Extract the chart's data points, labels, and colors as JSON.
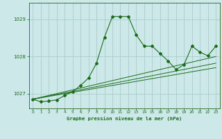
{
  "title": "Graphe pression niveau de la mer (hPa)",
  "background_color": "#cde8e8",
  "grid_color": "#aacccc",
  "line_color": "#1a6b1a",
  "xlim": [
    -0.5,
    23.5
  ],
  "ylim": [
    1026.6,
    1029.45
  ],
  "yticks": [
    1027,
    1028,
    1029
  ],
  "xticks": [
    0,
    1,
    2,
    3,
    4,
    5,
    6,
    7,
    8,
    9,
    10,
    11,
    12,
    13,
    14,
    15,
    16,
    17,
    18,
    19,
    20,
    21,
    22,
    23
  ],
  "series": [
    [
      0,
      1026.85
    ],
    [
      1,
      1026.78
    ],
    [
      2,
      1026.8
    ],
    [
      3,
      1026.83
    ],
    [
      4,
      1026.95
    ],
    [
      5,
      1027.05
    ],
    [
      6,
      1027.22
    ],
    [
      7,
      1027.42
    ],
    [
      8,
      1027.82
    ],
    [
      9,
      1028.52
    ],
    [
      10,
      1029.08
    ],
    [
      11,
      1029.08
    ],
    [
      12,
      1029.08
    ],
    [
      13,
      1028.58
    ],
    [
      14,
      1028.28
    ],
    [
      15,
      1028.28
    ],
    [
      16,
      1028.08
    ],
    [
      17,
      1027.88
    ],
    [
      18,
      1027.65
    ],
    [
      19,
      1027.78
    ],
    [
      20,
      1028.28
    ],
    [
      21,
      1028.12
    ],
    [
      22,
      1028.02
    ],
    [
      23,
      1028.28
    ]
  ],
  "line2": [
    [
      0,
      1026.85
    ],
    [
      23,
      1027.7
    ]
  ],
  "line3": [
    [
      0,
      1026.85
    ],
    [
      23,
      1027.82
    ]
  ],
  "line4": [
    [
      0,
      1026.85
    ],
    [
      23,
      1028.0
    ]
  ]
}
